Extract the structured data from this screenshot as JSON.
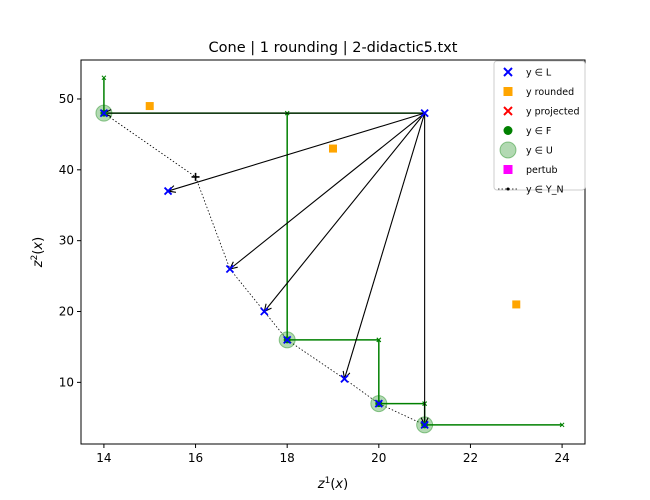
{
  "chart_data": {
    "type": "scatter",
    "title": "Cone | 1 rounding | 2-didactic5.txt",
    "xlabel": "z¹(x)",
    "ylabel": "z²(x)",
    "xlim": [
      13.5,
      24.5
    ],
    "ylim": [
      1.3,
      55.5
    ],
    "xticks": [
      14,
      16,
      18,
      20,
      22,
      24
    ],
    "yticks": [
      10,
      20,
      30,
      40,
      50
    ],
    "grid": false,
    "legend_position": "top-right",
    "colors": {
      "L": "#0000ff",
      "rounded": "#ffa500",
      "projected": "#ff0000",
      "F": "#008000",
      "U": "#008000",
      "pertub": "#ff00ff",
      "YN": "#000000",
      "arrows": "#000000",
      "cone": "#008000"
    },
    "legend": [
      {
        "key": "L",
        "label": "y ∈ L",
        "marker": "x"
      },
      {
        "key": "rounded",
        "label": "y rounded",
        "marker": "square"
      },
      {
        "key": "projected",
        "label": "y projected",
        "marker": "x"
      },
      {
        "key": "F",
        "label": "y ∈ F",
        "marker": "dot"
      },
      {
        "key": "U",
        "label": "y ∈ U",
        "marker": "circle"
      },
      {
        "key": "pertub",
        "label": "pertub",
        "marker": "square"
      },
      {
        "key": "YN",
        "label": "y ∈ Y_N",
        "marker": "dotted-line"
      }
    ],
    "YN_line": [
      [
        14,
        48
      ],
      [
        16,
        39
      ],
      [
        16.75,
        26
      ],
      [
        17.5,
        20
      ],
      [
        18,
        16
      ],
      [
        19.25,
        10.5
      ],
      [
        20,
        7
      ],
      [
        21,
        4
      ]
    ],
    "L_points": [
      [
        14,
        48
      ],
      [
        15.4,
        37
      ],
      [
        16.75,
        26
      ],
      [
        17.5,
        20
      ],
      [
        18,
        16
      ],
      [
        19.25,
        10.5
      ],
      [
        20,
        7
      ],
      [
        21,
        4
      ],
      [
        21,
        48
      ]
    ],
    "rounded_points": [
      [
        15,
        49
      ],
      [
        19,
        43
      ],
      [
        23,
        21
      ]
    ],
    "F_points": [
      [
        14,
        48
      ],
      [
        18,
        16
      ],
      [
        20,
        7
      ],
      [
        21,
        4
      ]
    ],
    "U_points": [
      [
        14,
        48
      ],
      [
        18,
        16
      ],
      [
        20,
        7
      ],
      [
        21,
        4
      ]
    ],
    "plus_marker": [
      16,
      39
    ],
    "arrows": {
      "origin": [
        21,
        48
      ],
      "targets": [
        [
          14,
          48
        ],
        [
          15.4,
          37
        ],
        [
          16.75,
          26
        ],
        [
          17.5,
          20
        ],
        [
          19.25,
          10.5
        ],
        [
          21,
          4
        ]
      ]
    },
    "cones": [
      {
        "apex": [
          14,
          48
        ],
        "right_to": 21,
        "up_to": 53
      },
      {
        "apex": [
          18,
          16
        ],
        "right_to": 20,
        "up_to": 48
      },
      {
        "apex": [
          20,
          7
        ],
        "right_to": 21,
        "up_to": 16
      },
      {
        "apex": [
          21,
          4
        ],
        "right_to": 24,
        "up_to": 7
      }
    ]
  }
}
